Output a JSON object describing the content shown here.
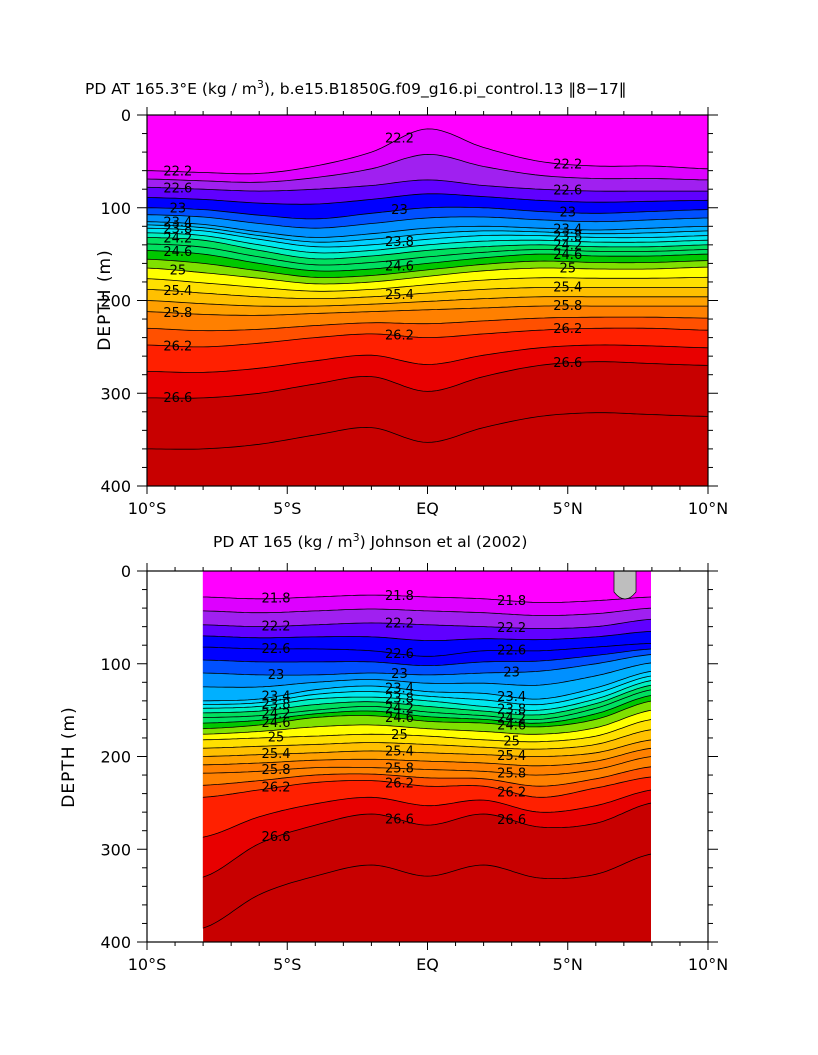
{
  "chart_data": [
    {
      "type": "contour",
      "title": "PD AT 165.3°E (kg / m3), b.e15.B1850G.f09_g16.pi_control.13 ‖8−17‖",
      "title_parts": {
        "main": "PD AT 165.3°E (kg / m",
        "sup": "3",
        "rest": "), b.e15.B1850G.f09_g16.pi_control.13 ‖8−17‖"
      },
      "ylabel": "DEPTH (m)",
      "xlabel": "",
      "x_ticks": [
        "10°S",
        "5°S",
        "EQ",
        "5°N",
        "10°N"
      ],
      "x_tick_values": [
        -10,
        -5,
        0,
        5,
        10
      ],
      "y_ticks": [
        "0",
        "100",
        "200",
        "300",
        "400"
      ],
      "y_tick_values": [
        0,
        100,
        200,
        300,
        400
      ],
      "xlim": [
        -10,
        10
      ],
      "ylim": [
        0,
        400
      ],
      "y_reversed": true,
      "data_xlim": [
        -10,
        10
      ],
      "contour_interval": 0.2,
      "contour_label_values": [
        22.2,
        22.6,
        23,
        23.4,
        23.8,
        24.2,
        24.6,
        25,
        25.4,
        25.8,
        26.2,
        26.6
      ],
      "isopycnal_depths": {
        "x": [
          -10,
          -8,
          -6,
          -4,
          -2,
          0,
          2,
          4,
          6,
          8,
          10
        ],
        "series": [
          {
            "sigma": 22.2,
            "depth": [
              60,
              62,
              63,
              55,
              40,
              15,
              35,
              50,
              55,
              55,
              58
            ]
          },
          {
            "sigma": 22.6,
            "depth": [
              78,
              80,
              82,
              80,
              76,
              70,
              76,
              80,
              82,
              82,
              82
            ]
          },
          {
            "sigma": 23.0,
            "depth": [
              100,
              102,
              108,
              112,
              106,
              100,
              100,
              104,
              106,
              104,
              102
            ]
          },
          {
            "sigma": 23.4,
            "depth": [
              115,
              118,
              126,
              132,
              128,
              122,
              120,
              122,
              124,
              122,
              120
            ]
          },
          {
            "sigma": 23.8,
            "depth": [
              122,
              125,
              134,
              142,
              140,
              134,
              130,
              130,
              132,
              132,
              130
            ]
          },
          {
            "sigma": 24.2,
            "depth": [
              132,
              135,
              146,
              155,
              152,
              146,
              142,
              140,
              142,
              142,
              140
            ]
          },
          {
            "sigma": 24.6,
            "depth": [
              146,
              150,
              160,
              168,
              166,
              160,
              154,
              150,
              152,
              152,
              150
            ]
          },
          {
            "sigma": 25.0,
            "depth": [
              165,
              170,
              176,
              182,
              180,
              174,
              168,
              165,
              166,
              166,
              164
            ]
          },
          {
            "sigma": 25.4,
            "depth": [
              188,
              192,
              196,
              198,
              196,
              192,
              188,
              186,
              186,
              186,
              186
            ]
          },
          {
            "sigma": 25.8,
            "depth": [
              212,
              215,
              216,
              214,
              212,
              210,
              208,
              206,
              206,
              206,
              206
            ]
          },
          {
            "sigma": 26.2,
            "depth": [
              248,
              250,
              246,
              240,
              236,
              240,
              236,
              232,
              230,
              230,
              232
            ]
          },
          {
            "sigma": 26.6,
            "depth": [
              305,
              305,
              300,
              290,
              282,
              298,
              282,
              270,
              266,
              268,
              270
            ]
          }
        ]
      }
    },
    {
      "type": "contour",
      "title": "PD AT 165 (kg / m3) Johnson et al (2002)",
      "title_parts": {
        "main": "PD AT 165 (kg / m",
        "sup": "3",
        "rest": ") Johnson et al (2002)"
      },
      "ylabel": "DEPTH (m)",
      "xlabel": "",
      "x_ticks": [
        "10°S",
        "5°S",
        "EQ",
        "5°N",
        "10°N"
      ],
      "x_tick_values": [
        -10,
        -5,
        0,
        5,
        10
      ],
      "y_ticks": [
        "0",
        "100",
        "200",
        "300",
        "400"
      ],
      "y_tick_values": [
        0,
        100,
        200,
        300,
        400
      ],
      "xlim": [
        -10,
        10
      ],
      "ylim": [
        0,
        400
      ],
      "y_reversed": true,
      "data_xlim": [
        -8,
        8
      ],
      "contour_interval": 0.2,
      "contour_label_values": [
        21.8,
        22.2,
        22.6,
        23,
        23.4,
        23.8,
        24.2,
        24.6,
        25,
        25.4,
        25.8,
        26.2,
        26.6
      ],
      "isopycnal_depths": {
        "x": [
          -8,
          -6,
          -4,
          -2,
          0,
          2,
          4,
          6,
          8
        ],
        "series": [
          {
            "sigma": 21.8,
            "depth": [
              28,
              30,
              28,
              26,
              28,
              30,
              34,
              32,
              28
            ]
          },
          {
            "sigma": 22.2,
            "depth": [
              58,
              60,
              58,
              56,
              58,
              60,
              62,
              60,
              52
            ]
          },
          {
            "sigma": 22.6,
            "depth": [
              82,
              84,
              84,
              86,
              92,
              86,
              86,
              82,
              78
            ]
          },
          {
            "sigma": 23.0,
            "depth": [
              110,
              112,
              112,
              110,
              112,
              110,
              108,
              100,
              90
            ]
          },
          {
            "sigma": 23.4,
            "depth": [
              140,
              138,
              128,
              124,
              130,
              132,
              138,
              126,
              108
            ]
          },
          {
            "sigma": 23.8,
            "depth": [
              148,
              146,
              138,
              136,
              140,
              146,
              150,
              138,
              118
            ]
          },
          {
            "sigma": 24.2,
            "depth": [
              158,
              156,
              150,
              146,
              152,
              156,
              160,
              148,
              128
            ]
          },
          {
            "sigma": 24.6,
            "depth": [
              170,
              166,
              158,
              156,
              162,
              164,
              168,
              160,
              140
            ]
          },
          {
            "sigma": 25.0,
            "depth": [
              182,
              180,
              178,
              176,
              178,
              182,
              184,
              178,
              160
            ]
          },
          {
            "sigma": 25.4,
            "depth": [
              200,
              198,
              196,
              194,
              196,
              198,
              200,
              196,
              182
            ]
          },
          {
            "sigma": 25.8,
            "depth": [
              218,
              216,
              212,
              212,
              214,
              216,
              220,
              214,
              200
            ]
          },
          {
            "sigma": 26.2,
            "depth": [
              244,
              236,
              228,
              226,
              232,
              232,
              244,
              234,
              222
            ]
          },
          {
            "sigma": 26.6,
            "depth": [
              330,
              294,
              274,
              262,
              274,
              262,
              276,
              272,
              250
            ]
          }
        ]
      },
      "missing_data_note_color": "#bebebe"
    }
  ],
  "colors": {
    "colormap_light_to_dense": [
      "#ff00ff",
      "#dd00ff",
      "#a020f0",
      "#6000ff",
      "#0000ff",
      "#0050ff",
      "#0090ff",
      "#00b0ff",
      "#00d0ff",
      "#00e8f0",
      "#00f0c0",
      "#00e060",
      "#00c800",
      "#80e000",
      "#ffff00",
      "#ffe000",
      "#ffc000",
      "#ffa000",
      "#ff8000",
      "#ff5000",
      "#ff2000",
      "#e80000",
      "#c80000"
    ],
    "missing": "#bebebe",
    "contour_line": "#000000"
  }
}
